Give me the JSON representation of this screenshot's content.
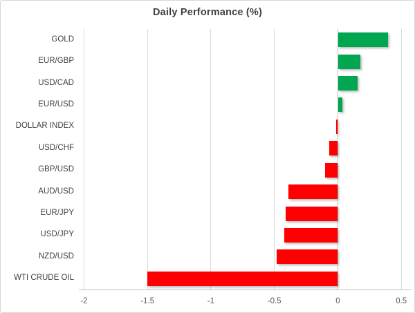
{
  "title": "Daily Performance (%)",
  "colors": {
    "positive_bar": "#00A650",
    "negative_bar": "#FF0000",
    "gridline": "#D9D9D9",
    "axis_line": "#BFBFBF",
    "title_text": "#404040",
    "category_text": "#404040",
    "tick_text": "#595959",
    "chart_border": "#D7D7D7",
    "background": "#FFFFFF"
  },
  "chart_data": {
    "type": "bar",
    "orientation": "horizontal",
    "title": "Daily Performance (%)",
    "categories": [
      "GOLD",
      "EUR/GBP",
      "USD/CAD",
      "EUR/USD",
      "DOLLAR INDEX",
      "USD/CHF",
      "GBP/USD",
      "AUD/USD",
      "EUR/JPY",
      "USD/JPY",
      "NZD/USD",
      "WTI CRUDE OIL"
    ],
    "values": [
      0.39,
      0.17,
      0.15,
      0.03,
      -0.01,
      -0.07,
      -0.1,
      -0.39,
      -0.41,
      -0.42,
      -0.48,
      -1.5
    ],
    "xlabel": "",
    "ylabel": "",
    "xlim": [
      -2,
      0.5
    ],
    "xticks": [
      -2,
      -1.5,
      -1,
      -0.5,
      0,
      0.5
    ],
    "xtick_labels": [
      "-2",
      "-1.5",
      "-1",
      "-0.5",
      "0",
      "0.5"
    ],
    "grid": true,
    "legend": false,
    "color_rule": "green if positive, red if negative"
  }
}
